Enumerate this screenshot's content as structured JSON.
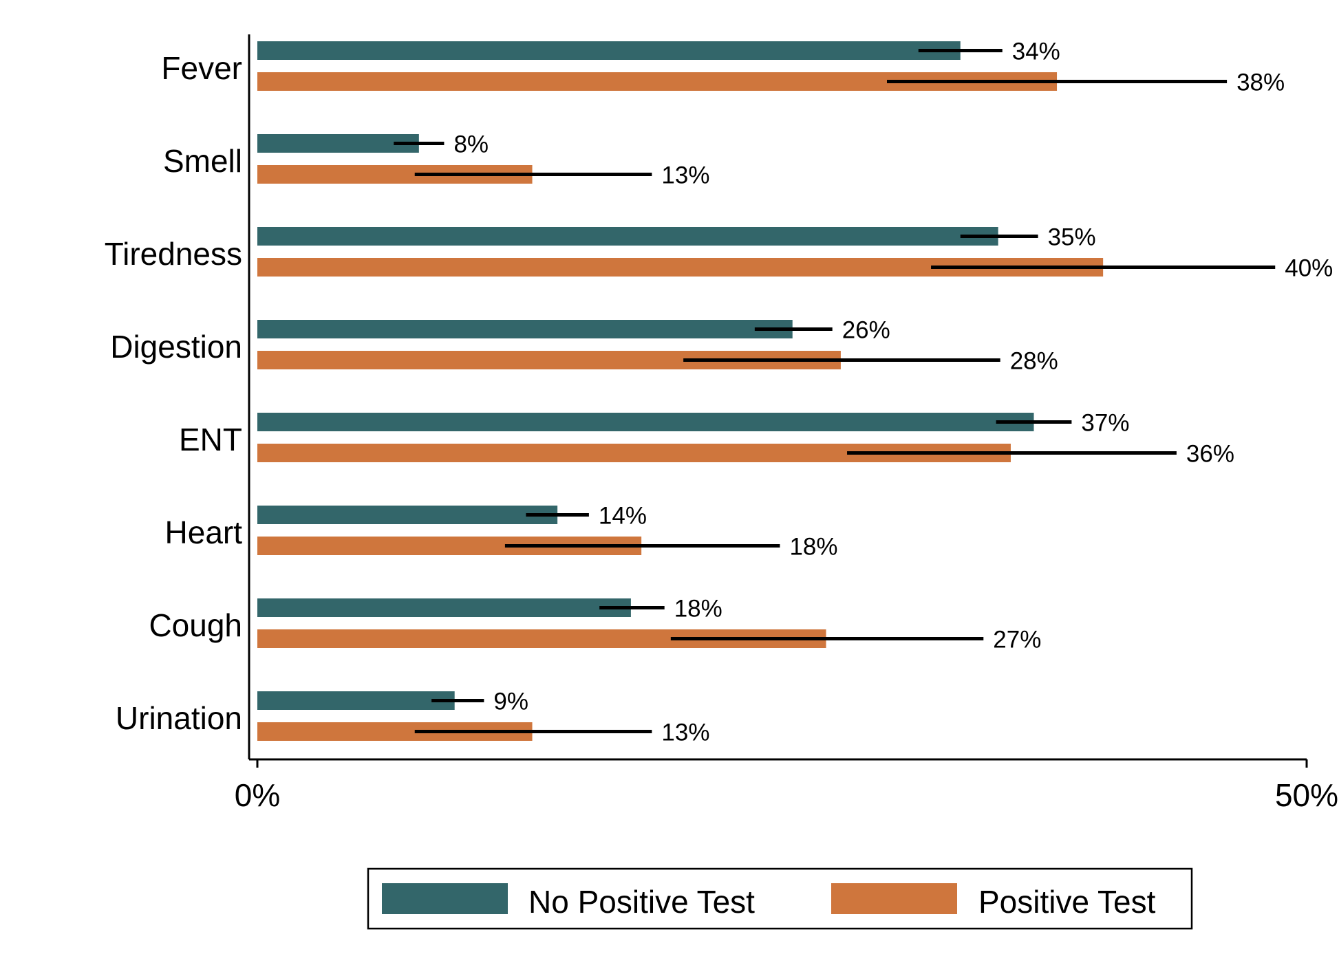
{
  "chart_data": {
    "type": "bar",
    "orientation": "horizontal",
    "categories": [
      "Fever",
      "Smell",
      "Tiredness",
      "Digestion",
      "ENT",
      "Heart",
      "Cough",
      "Urination"
    ],
    "series": [
      {
        "name": "No Positive Test",
        "color": "#33666a",
        "values": [
          33.5,
          7.7,
          35.3,
          25.5,
          37.0,
          14.3,
          17.8,
          9.4
        ],
        "ci_low": [
          31.5,
          6.5,
          33.5,
          23.7,
          35.2,
          12.8,
          16.3,
          8.3
        ],
        "ci_high": [
          35.5,
          8.9,
          37.2,
          27.4,
          38.8,
          15.8,
          19.4,
          10.8
        ],
        "labels": [
          "34%",
          "8%",
          "35%",
          "26%",
          "37%",
          "14%",
          "18%",
          "9%"
        ]
      },
      {
        "name": "Positive Test",
        "color": "#cf763d",
        "values": [
          38.1,
          13.1,
          40.3,
          27.8,
          35.9,
          18.3,
          27.1,
          13.1
        ],
        "ci_low": [
          30.0,
          7.5,
          32.1,
          20.3,
          28.1,
          11.8,
          19.7,
          7.5
        ],
        "ci_high": [
          46.2,
          18.8,
          48.5,
          35.4,
          43.8,
          24.9,
          34.6,
          18.8
        ],
        "labels": [
          "38%",
          "13%",
          "40%",
          "28%",
          "36%",
          "18%",
          "27%",
          "13%"
        ]
      }
    ],
    "xlim": [
      0,
      50
    ],
    "xticks": [
      0,
      50
    ],
    "xtick_labels": [
      "0%",
      "50%"
    ],
    "legend_position": "bottom",
    "grid": false
  }
}
